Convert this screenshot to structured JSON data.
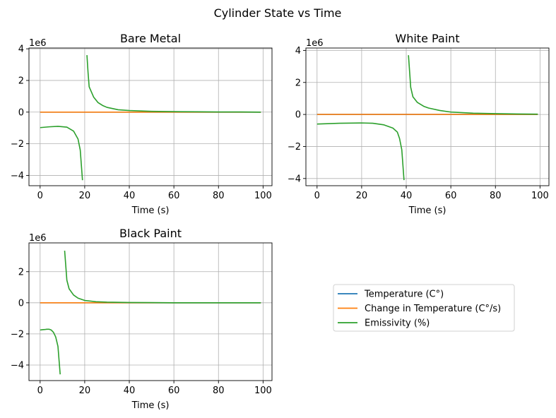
{
  "figure": {
    "suptitle": "Cylinder State vs Time"
  },
  "legend": {
    "placement": "center of empty fourth panel",
    "entries": [
      {
        "label": "Temperature (C°)",
        "color": "#1f77b4"
      },
      {
        "label": "Change in Temperature (C°/s)",
        "color": "#ff7f0e"
      },
      {
        "label": "Emissivity (%)",
        "color": "#2ca02c"
      }
    ]
  },
  "chart_data": [
    {
      "type": "line",
      "title": "Bare Metal",
      "xlabel": "Time (s)",
      "ylabel": "",
      "y_offset_text": "1e6",
      "xlim": [
        -5,
        104
      ],
      "ylim": [
        -4.65,
        4.05
      ],
      "xticks": [
        0,
        20,
        40,
        60,
        80,
        100
      ],
      "xtick_labels": [
        "0",
        "20",
        "40",
        "60",
        "80",
        "100"
      ],
      "yticks": [
        -4,
        -2,
        0,
        2,
        4
      ],
      "ytick_labels": [
        "−4",
        "−2",
        "0",
        "2",
        "4"
      ],
      "grid": true,
      "series": [
        {
          "name": "Temperature (C°)",
          "color": "#1f77b4",
          "x": [
            0,
            99
          ],
          "y": [
            0.0,
            0.0
          ]
        },
        {
          "name": "Change in Temperature (C°/s)",
          "color": "#ff7f0e",
          "x": [
            0,
            99
          ],
          "y": [
            0.0,
            0.0
          ]
        },
        {
          "name": "Emissivity (%)",
          "color": "#2ca02c",
          "x": [
            0,
            4,
            8,
            12,
            15,
            17,
            18,
            19,
            null,
            21,
            21.5,
            22,
            24,
            26,
            28,
            30,
            35,
            40,
            50,
            60,
            70,
            80,
            90,
            99
          ],
          "y": [
            -0.98,
            -0.93,
            -0.9,
            -0.95,
            -1.2,
            -1.7,
            -2.4,
            -4.3,
            null,
            3.6,
            2.5,
            1.6,
            0.95,
            0.6,
            0.42,
            0.3,
            0.15,
            0.1,
            0.05,
            0.03,
            0.02,
            0.01,
            0.01,
            0.0
          ]
        }
      ]
    },
    {
      "type": "line",
      "title": "White Paint",
      "xlabel": "Time (s)",
      "ylabel": "",
      "y_offset_text": "1e6",
      "xlim": [
        -5,
        104
      ],
      "ylim": [
        -4.45,
        4.15
      ],
      "xticks": [
        0,
        20,
        40,
        60,
        80,
        100
      ],
      "xtick_labels": [
        "0",
        "20",
        "40",
        "60",
        "80",
        "100"
      ],
      "yticks": [
        -4,
        -2,
        0,
        2,
        4
      ],
      "ytick_labels": [
        "−4",
        "−2",
        "0",
        "2",
        "4"
      ],
      "grid": true,
      "series": [
        {
          "name": "Temperature (C°)",
          "color": "#1f77b4",
          "x": [
            0,
            99
          ],
          "y": [
            0.0,
            0.0
          ]
        },
        {
          "name": "Change in Temperature (C°/s)",
          "color": "#ff7f0e",
          "x": [
            0,
            99
          ],
          "y": [
            0.0,
            0.0
          ]
        },
        {
          "name": "Emissivity (%)",
          "color": "#2ca02c",
          "x": [
            0,
            10,
            20,
            25,
            30,
            34,
            36,
            37,
            38,
            39,
            null,
            41,
            42,
            43,
            45,
            48,
            50,
            55,
            60,
            70,
            80,
            90,
            99
          ],
          "y": [
            -0.6,
            -0.55,
            -0.53,
            -0.55,
            -0.65,
            -0.85,
            -1.1,
            -1.5,
            -2.2,
            -4.1,
            null,
            3.7,
            1.7,
            1.1,
            0.75,
            0.5,
            0.4,
            0.25,
            0.15,
            0.08,
            0.05,
            0.03,
            0.02
          ]
        }
      ]
    },
    {
      "type": "line",
      "title": "Black Paint",
      "xlabel": "Time (s)",
      "ylabel": "",
      "y_offset_text": "1e6",
      "xlim": [
        -5,
        104
      ],
      "ylim": [
        -5.0,
        3.85
      ],
      "xticks": [
        0,
        20,
        40,
        60,
        80,
        100
      ],
      "xtick_labels": [
        "0",
        "20",
        "40",
        "60",
        "80",
        "100"
      ],
      "yticks": [
        -4,
        -2,
        0,
        2
      ],
      "ytick_labels": [
        "−4",
        "−2",
        "0",
        "2"
      ],
      "grid": true,
      "series": [
        {
          "name": "Temperature (C°)",
          "color": "#1f77b4",
          "x": [
            0,
            99
          ],
          "y": [
            0.0,
            0.0
          ]
        },
        {
          "name": "Change in Temperature (C°/s)",
          "color": "#ff7f0e",
          "x": [
            0,
            99
          ],
          "y": [
            0.0,
            0.0
          ]
        },
        {
          "name": "Emissivity (%)",
          "color": "#2ca02c",
          "x": [
            0,
            1,
            2,
            3,
            4,
            5,
            6,
            7,
            8,
            9,
            null,
            11,
            12,
            13,
            15,
            17,
            20,
            25,
            30,
            40,
            50,
            60,
            80,
            99
          ],
          "y": [
            -1.75,
            -1.73,
            -1.72,
            -1.7,
            -1.7,
            -1.75,
            -1.9,
            -2.2,
            -2.8,
            -4.6,
            null,
            3.35,
            1.45,
            0.9,
            0.5,
            0.3,
            0.15,
            0.07,
            0.04,
            0.02,
            0.01,
            0.0,
            0.0,
            0.0
          ]
        }
      ]
    }
  ]
}
